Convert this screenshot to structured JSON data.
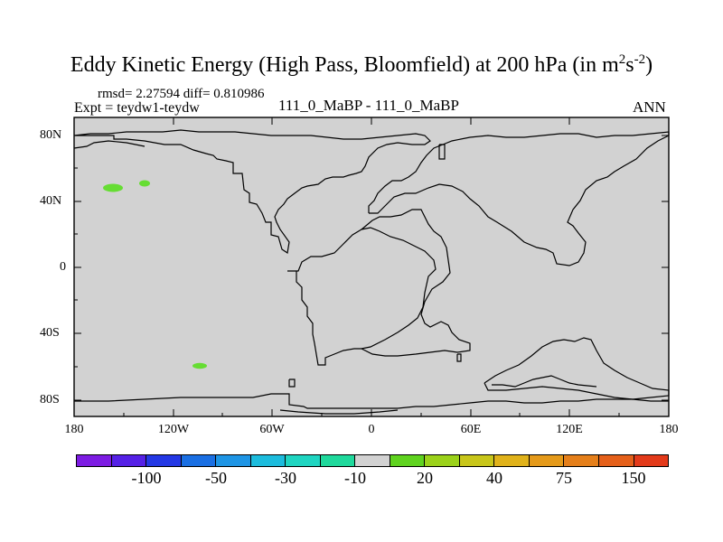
{
  "title_main": "Eddy Kinetic Energy (High Pass, Bloomfield) at 200 hPa (in m",
  "title_sup1": "2",
  "title_mid": "s",
  "title_sup2": "-2",
  "title_close": ")",
  "stats_line": "rmsd= 2.27594 diff= 0.810986",
  "expt_label": "Expt = teydw1-teydw",
  "center_label": "111_0_MaBP - 111_0_MaBP",
  "season_label": "ANN",
  "map": {
    "background_color": "#d2d2d2",
    "lat_ticks": [
      "80N",
      "40N",
      "0",
      "40S",
      "80S"
    ],
    "lon_ticks": [
      "180",
      "120W",
      "60W",
      "0",
      "60E",
      "120E",
      "180"
    ],
    "blobs": [
      {
        "name": "anomaly-blob-north-pacific-west",
        "color": "#66dd33"
      },
      {
        "name": "anomaly-blob-north-pacific-east",
        "color": "#66dd33"
      },
      {
        "name": "anomaly-blob-south-pacific",
        "color": "#66dd33"
      }
    ]
  },
  "colorbar": {
    "colors": [
      "#7d1ce3",
      "#5521e6",
      "#2438e5",
      "#1a6fe3",
      "#1e95e5",
      "#1cbcdd",
      "#1fd5c1",
      "#1fd99c",
      "#d2d2d2",
      "#5fd31f",
      "#9bd21a",
      "#c8c61a",
      "#e0b21a",
      "#e59a1a",
      "#e57f1a",
      "#e5601a",
      "#e33a1a"
    ],
    "labels": [
      "-100",
      "-50",
      "-30",
      "-10",
      "20",
      "40",
      "75",
      "150"
    ]
  }
}
